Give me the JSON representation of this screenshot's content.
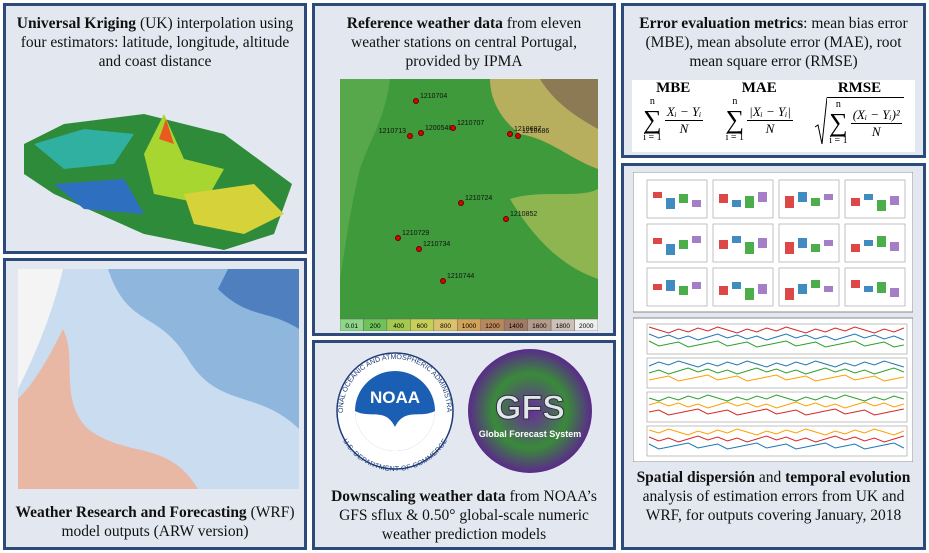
{
  "panels": [
    {
      "caption": [
        {
          "text": "Universal Kriging",
          "bold": true
        },
        {
          "text": " (UK) interpolation using four estimators: latitude, longitude, altitude and coast distance",
          "bold": false
        }
      ]
    },
    {
      "caption": [
        {
          "text": "Weather Research and Forecasting",
          "bold": true
        },
        {
          "text": " (WRF) model outputs (ARW version)",
          "bold": false
        }
      ]
    },
    {
      "caption": [
        {
          "text": "Reference weather data",
          "bold": true
        },
        {
          "text": " from eleven weather stations on central Portugal, provided by IPMA",
          "bold": false
        }
      ]
    },
    {
      "caption": [
        {
          "text": "Downscaling weather data",
          "bold": true
        },
        {
          "text": " from NOAA’s GFS sflux & 0.50° global-scale numeric weather prediction models",
          "bold": false
        }
      ]
    },
    {
      "caption": [
        {
          "text": "Error evaluation metrics",
          "bold": true
        },
        {
          "text": ": mean bias error (MBE), mean absolute error (MAE), root mean square error (RMSE)",
          "bold": false
        }
      ]
    },
    {
      "caption": [
        {
          "text": "Spatial dispersión",
          "bold": true
        },
        {
          "text": " and ",
          "bold": false
        },
        {
          "text": "temporal evolution",
          "bold": true
        },
        {
          "text": " analysis of estimation errors from UK and WRF, for outputs covering January, 2018",
          "bold": false
        }
      ]
    }
  ],
  "stations": [
    "1210704",
    "1210713",
    "1200548",
    "1210707",
    "1210697",
    "1210686",
    "1210724",
    "1210852",
    "1210729",
    "1210734",
    "1210744"
  ],
  "elevation_legend": [
    "0.01",
    "200",
    "400",
    "600",
    "800",
    "1000",
    "1200",
    "1400",
    "1600",
    "1800",
    "2000"
  ],
  "logos": {
    "noaa": {
      "acronym": "NOAA",
      "ring_top": "NATIONAL OCEANIC AND ATMOSPHERIC ADMINISTRATION",
      "ring_bottom": "U.S. DEPARTMENT OF COMMERCE"
    },
    "gfs": {
      "acronym": "GFS",
      "name": "Global Forecast System"
    }
  },
  "metrics": {
    "sum_symbol": "∑",
    "items": [
      {
        "name": "MBE",
        "sum_upper": "n",
        "sum_lower": "i = 1",
        "numerator": "Xᵢ − Yᵢ",
        "denominator": "N",
        "root": false
      },
      {
        "name": "MAE",
        "sum_upper": "n",
        "sum_lower": "i = 1",
        "numerator": "|Xᵢ − Yᵢ|",
        "denominator": "N",
        "root": false
      },
      {
        "name": "RMSE",
        "sum_upper": "n",
        "sum_lower": "i = 1",
        "numerator": "(Xᵢ − Yᵢ)²",
        "denominator": "N",
        "root": true
      }
    ]
  }
}
